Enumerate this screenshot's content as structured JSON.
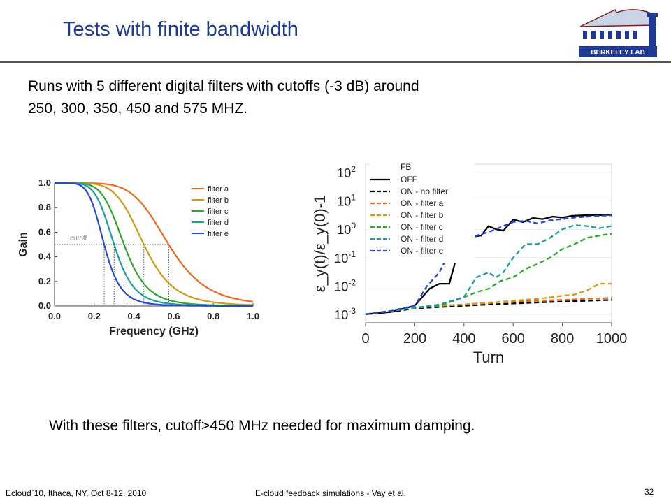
{
  "slide": {
    "title": "Tests with finite bandwidth",
    "intro_line1": "Runs with 5 different digital filters with cutoffs (-3 dB) around",
    "intro_line2": "250, 300, 350, 450 and 575 MHZ.",
    "conclusion": "With these filters, cutoff>450 MHz needed for maximum damping.",
    "footer_left": "Ecloud`10, Ithaca, NY, Oct 8-12, 2010",
    "footer_center": "E-cloud feedback simulations - Vay et al.",
    "page_number": "32",
    "logo_text": "BERKELEY LAB"
  },
  "chart_data": [
    {
      "type": "line",
      "xlabel": "Frequency (GHz)",
      "ylabel": "Gain",
      "xlim": [
        0,
        1
      ],
      "ylim": [
        0,
        1
      ],
      "xticks": [
        "0.0",
        "0.2",
        "0.4",
        "0.6",
        "0.8",
        "1.0"
      ],
      "yticks": [
        "0.0",
        "0.2",
        "0.4",
        "0.6",
        "0.8",
        "1.0"
      ],
      "cutoff_label": "cutoff",
      "cutoff_gain": 0.5,
      "legend_position": "top-right",
      "series": [
        {
          "name": "filter a",
          "color": "#ee6a1f",
          "cutoff": 0.575
        },
        {
          "name": "filter b",
          "color": "#cf9a15",
          "cutoff": 0.45
        },
        {
          "name": "filter c",
          "color": "#2fa82a",
          "cutoff": 0.35
        },
        {
          "name": "filter d",
          "color": "#1c9e9a",
          "cutoff": 0.3
        },
        {
          "name": "filter e",
          "color": "#2848d8",
          "cutoff": 0.25
        }
      ]
    },
    {
      "type": "line",
      "xlabel": "Turn",
      "ylabel": "ε_y(t)/ε_y(0)-1",
      "xlim": [
        0,
        1000
      ],
      "ylim": [
        0.0005,
        200
      ],
      "yscale": "log",
      "xticks": [
        "0",
        "200",
        "400",
        "600",
        "800",
        "1000"
      ],
      "yticks": [
        "10^2",
        "10^1",
        "10^0",
        "10^-1",
        "10^-2",
        "10^-3"
      ],
      "legend_title": "FB",
      "legend_position": "top-right",
      "series": [
        {
          "name": "OFF",
          "color": "#000000",
          "dash": false,
          "x": [
            0,
            100,
            200,
            230,
            260,
            300,
            340,
            360,
            380,
            400,
            430,
            470,
            500,
            530,
            560,
            600,
            640,
            680,
            720,
            760,
            800,
            840,
            880,
            920,
            960,
            1000
          ],
          "y": [
            0.001,
            0.0012,
            0.002,
            0.004,
            0.008,
            0.012,
            0.012,
            0.05,
            0.3,
            0.5,
            0.55,
            0.6,
            1.3,
            1.0,
            0.9,
            2.2,
            1.8,
            2.5,
            2.3,
            2.8,
            2.6,
            3.0,
            3.1,
            3.2,
            3.2,
            3.3
          ]
        },
        {
          "name": "ON - no filter",
          "color": "#000000",
          "dash": true,
          "x": [
            0,
            100,
            200,
            300,
            400,
            500,
            600,
            700,
            800,
            900,
            1000
          ],
          "y": [
            0.001,
            0.0012,
            0.0016,
            0.0018,
            0.002,
            0.0022,
            0.0024,
            0.0026,
            0.0028,
            0.003,
            0.0032
          ]
        },
        {
          "name": "ON - filter a",
          "color": "#ee6a1f",
          "dash": true,
          "x": [
            0,
            100,
            200,
            300,
            400,
            500,
            600,
            700,
            800,
            900,
            1000
          ],
          "y": [
            0.001,
            0.0013,
            0.0017,
            0.002,
            0.0022,
            0.0026,
            0.0028,
            0.003,
            0.0032,
            0.0035,
            0.0038
          ]
        },
        {
          "name": "ON - filter b",
          "color": "#cf9a15",
          "dash": true,
          "x": [
            0,
            100,
            200,
            300,
            400,
            500,
            600,
            700,
            800,
            850,
            900,
            950,
            1000
          ],
          "y": [
            0.001,
            0.0013,
            0.0017,
            0.002,
            0.0022,
            0.0025,
            0.003,
            0.0035,
            0.0045,
            0.005,
            0.007,
            0.012,
            0.012
          ]
        },
        {
          "name": "ON - filter c",
          "color": "#2fa82a",
          "dash": true,
          "x": [
            0,
            100,
            200,
            300,
            400,
            450,
            500,
            550,
            600,
            650,
            700,
            750,
            800,
            850,
            900,
            950,
            1000
          ],
          "y": [
            0.001,
            0.0013,
            0.0017,
            0.002,
            0.004,
            0.006,
            0.008,
            0.015,
            0.02,
            0.04,
            0.06,
            0.1,
            0.2,
            0.3,
            0.5,
            0.6,
            0.7
          ]
        },
        {
          "name": "ON - filter d",
          "color": "#1c9e9a",
          "dash": true,
          "x": [
            0,
            100,
            200,
            300,
            400,
            450,
            500,
            530,
            560,
            600,
            650,
            700,
            750,
            800,
            850,
            900,
            950,
            1000
          ],
          "y": [
            0.001,
            0.0013,
            0.0017,
            0.0022,
            0.004,
            0.02,
            0.03,
            0.02,
            0.03,
            0.1,
            0.3,
            0.3,
            0.5,
            1.0,
            1.4,
            1.3,
            1.1,
            1.3
          ]
        },
        {
          "name": "ON - filter e",
          "color": "#2848d8",
          "dash": true,
          "x": [
            0,
            100,
            200,
            250,
            300,
            330,
            360,
            400,
            450,
            500,
            550,
            600,
            650,
            700,
            750,
            800,
            850,
            900,
            950,
            1000
          ],
          "y": [
            0.001,
            0.0013,
            0.002,
            0.01,
            0.03,
            0.1,
            0.3,
            0.5,
            0.6,
            0.8,
            1.2,
            1.8,
            2.0,
            1.6,
            2.1,
            2.3,
            2.6,
            2.8,
            3.0,
            3.1
          ]
        }
      ]
    }
  ]
}
